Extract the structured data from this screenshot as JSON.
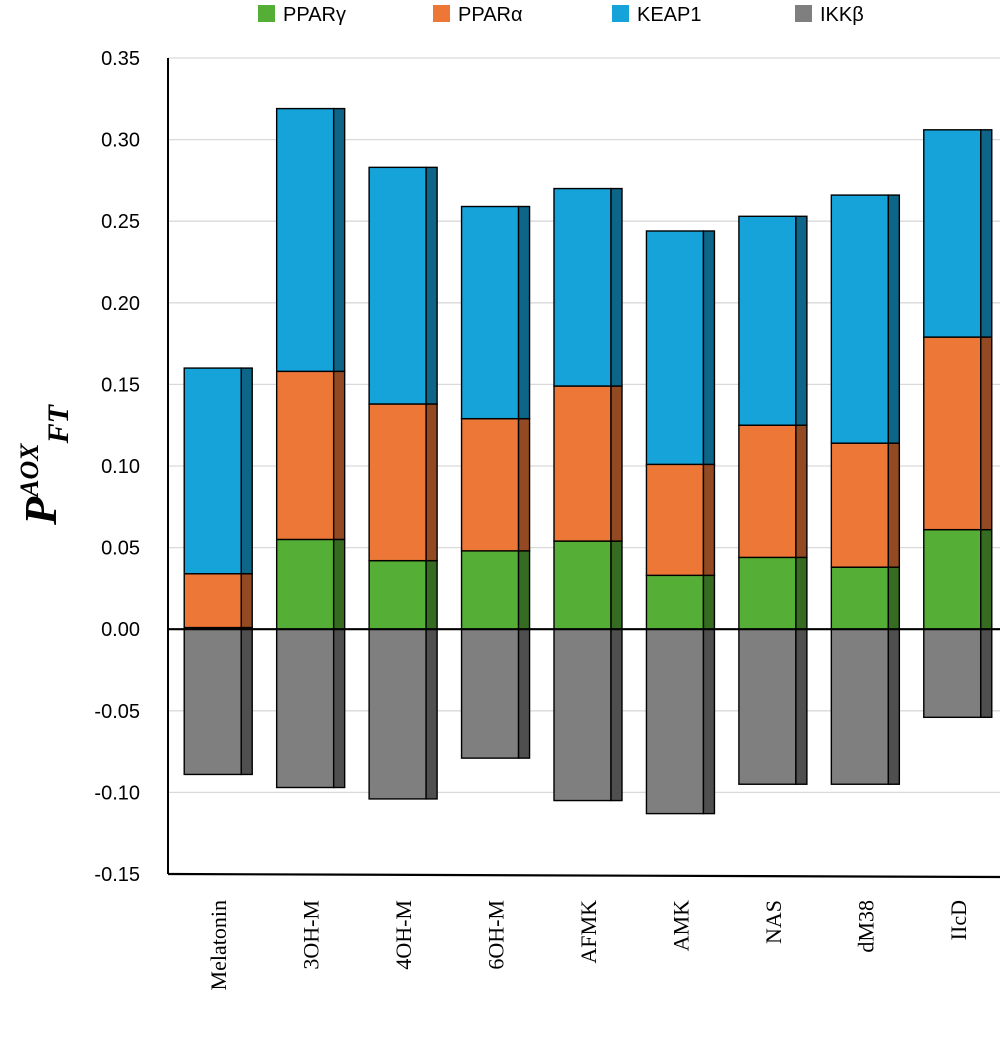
{
  "chart_data": {
    "type": "bar",
    "stacked": true,
    "title": "",
    "xlabel": "",
    "ylabel": {
      "base": "P",
      "superscript": "AOX",
      "subscript": "FT"
    },
    "ylim": [
      -0.15,
      0.35
    ],
    "yticks": [
      0.35,
      0.3,
      0.25,
      0.2,
      0.15,
      0.1,
      0.05,
      0.0,
      -0.05,
      -0.1,
      -0.15
    ],
    "ytick_labels": [
      "0.35",
      "0.30",
      "0.25",
      "0.20",
      "0.15",
      "0.10",
      "0.05",
      "0.00",
      "-0.05",
      "-0.10",
      "-0.15"
    ],
    "grid": true,
    "legend_position": "top",
    "categories": [
      "Melatonin",
      "3OH-M",
      "4OH-M",
      "6OH-M",
      "AFMK",
      "AMK",
      "NAS",
      "dM38",
      "IIcD"
    ],
    "series": [
      {
        "name": "PPARγ",
        "color": "#55ae36",
        "values": [
          0.001,
          0.055,
          0.042,
          0.048,
          0.054,
          0.033,
          0.044,
          0.038,
          0.061
        ]
      },
      {
        "name": "PPARα",
        "color": "#ed7737",
        "values": [
          0.033,
          0.103,
          0.096,
          0.081,
          0.095,
          0.068,
          0.081,
          0.076,
          0.118
        ]
      },
      {
        "name": "KEAP1",
        "color": "#15a3da",
        "values": [
          0.126,
          0.161,
          0.145,
          0.13,
          0.121,
          0.143,
          0.128,
          0.152,
          0.127
        ]
      },
      {
        "name": "IKKβ",
        "color": "#7f7f7f",
        "values": [
          -0.089,
          -0.097,
          -0.104,
          -0.079,
          -0.105,
          -0.113,
          -0.095,
          -0.095,
          -0.054
        ]
      }
    ]
  }
}
